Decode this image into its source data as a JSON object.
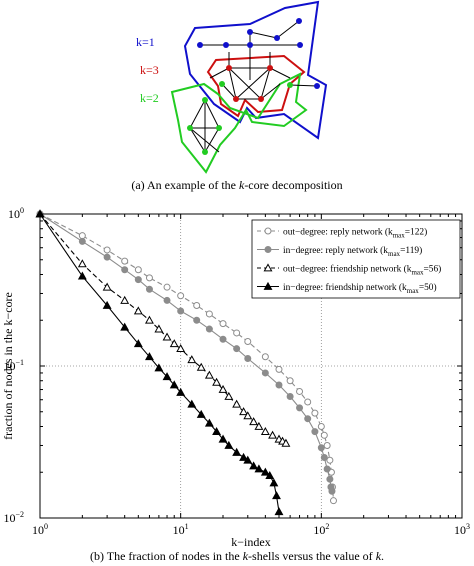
{
  "figure_a": {
    "label_k1": "k=1",
    "label_k3": "k=3",
    "label_k2": "k=2",
    "color_k1": "#1010cc",
    "color_k3": "#cc1010",
    "color_k2": "#22cc22",
    "caption_pre": "(a) An example of the ",
    "caption_k": "k",
    "caption_post": "-core decomposition"
  },
  "caption_b": {
    "pre": "(b) The fraction of nodes in the ",
    "k1": "k",
    "mid": "-shells versus the value of ",
    "k2": "k",
    "post": "."
  },
  "chart_data": {
    "type": "line",
    "xscale": "log",
    "yscale": "log",
    "xlim": [
      1,
      1000
    ],
    "ylim": [
      0.01,
      1
    ],
    "xlabel": "k−index",
    "ylabel": "fraction of nodes in the k−core",
    "x_ticks": [
      {
        "value": 1,
        "base": "10",
        "exp": "0"
      },
      {
        "value": 10,
        "base": "10",
        "exp": "1"
      },
      {
        "value": 100,
        "base": "10",
        "exp": "2"
      },
      {
        "value": 1000,
        "base": "10",
        "exp": "3"
      }
    ],
    "y_ticks": [
      {
        "value": 0.01,
        "base": "10",
        "exp": "−2"
      },
      {
        "value": 0.1,
        "base": "10",
        "exp": "−1"
      },
      {
        "value": 1,
        "base": "10",
        "exp": "0"
      }
    ],
    "grid": true,
    "legend_position": "top-right",
    "series": [
      {
        "name": "out−degree: reply network (k",
        "sub": "max",
        "suffix": "=122)",
        "kmax": 122,
        "color": "#8c8c8c",
        "marker": "circle-open",
        "line": "dashed",
        "x": [
          1,
          2,
          3,
          4,
          5,
          6,
          8,
          10,
          13,
          16,
          20,
          25,
          30,
          40,
          50,
          60,
          70,
          80,
          90,
          100,
          105,
          110,
          115,
          118,
          120,
          122
        ],
        "y": [
          1,
          0.72,
          0.58,
          0.49,
          0.43,
          0.38,
          0.33,
          0.29,
          0.25,
          0.22,
          0.19,
          0.165,
          0.145,
          0.115,
          0.095,
          0.08,
          0.068,
          0.058,
          0.049,
          0.04,
          0.035,
          0.03,
          0.024,
          0.02,
          0.016,
          0.013
        ]
      },
      {
        "name": "in−degree: reply network (k",
        "sub": "max",
        "suffix": "=119)",
        "kmax": 119,
        "color": "#8c8c8c",
        "marker": "circle-filled",
        "line": "solid",
        "x": [
          1,
          2,
          3,
          4,
          5,
          6,
          8,
          10,
          13,
          16,
          20,
          25,
          30,
          40,
          50,
          60,
          70,
          80,
          90,
          100,
          105,
          110,
          115,
          117,
          119
        ],
        "y": [
          1,
          0.66,
          0.52,
          0.43,
          0.37,
          0.32,
          0.27,
          0.23,
          0.2,
          0.175,
          0.15,
          0.13,
          0.112,
          0.09,
          0.075,
          0.063,
          0.053,
          0.045,
          0.037,
          0.029,
          0.025,
          0.021,
          0.018,
          0.016,
          0.015
        ]
      },
      {
        "name": "out−degree: friendship network (k",
        "sub": "max",
        "suffix": "=56)",
        "kmax": 56,
        "color": "#000000",
        "marker": "triangle-open",
        "line": "dashed",
        "x": [
          1,
          2,
          3,
          4,
          5,
          6,
          7,
          8,
          9,
          10,
          12,
          14,
          16,
          18,
          20,
          22,
          25,
          28,
          30,
          33,
          36,
          40,
          45,
          50,
          53,
          56
        ],
        "y": [
          1,
          0.47,
          0.33,
          0.27,
          0.23,
          0.2,
          0.175,
          0.155,
          0.14,
          0.13,
          0.11,
          0.098,
          0.087,
          0.078,
          0.07,
          0.063,
          0.056,
          0.05,
          0.047,
          0.043,
          0.04,
          0.037,
          0.035,
          0.033,
          0.032,
          0.031
        ]
      },
      {
        "name": "in−degree: friendship network (k",
        "sub": "max",
        "suffix": "=50)",
        "kmax": 50,
        "color": "#000000",
        "marker": "triangle-filled",
        "line": "solid",
        "x": [
          1,
          2,
          3,
          4,
          5,
          6,
          7,
          8,
          9,
          10,
          12,
          14,
          16,
          18,
          20,
          22,
          25,
          28,
          30,
          33,
          36,
          40,
          43,
          46,
          48,
          50
        ],
        "y": [
          1,
          0.39,
          0.25,
          0.18,
          0.14,
          0.115,
          0.097,
          0.085,
          0.075,
          0.067,
          0.056,
          0.048,
          0.042,
          0.037,
          0.033,
          0.03,
          0.027,
          0.025,
          0.024,
          0.022,
          0.021,
          0.02,
          0.019,
          0.017,
          0.014,
          0.011
        ]
      }
    ]
  }
}
